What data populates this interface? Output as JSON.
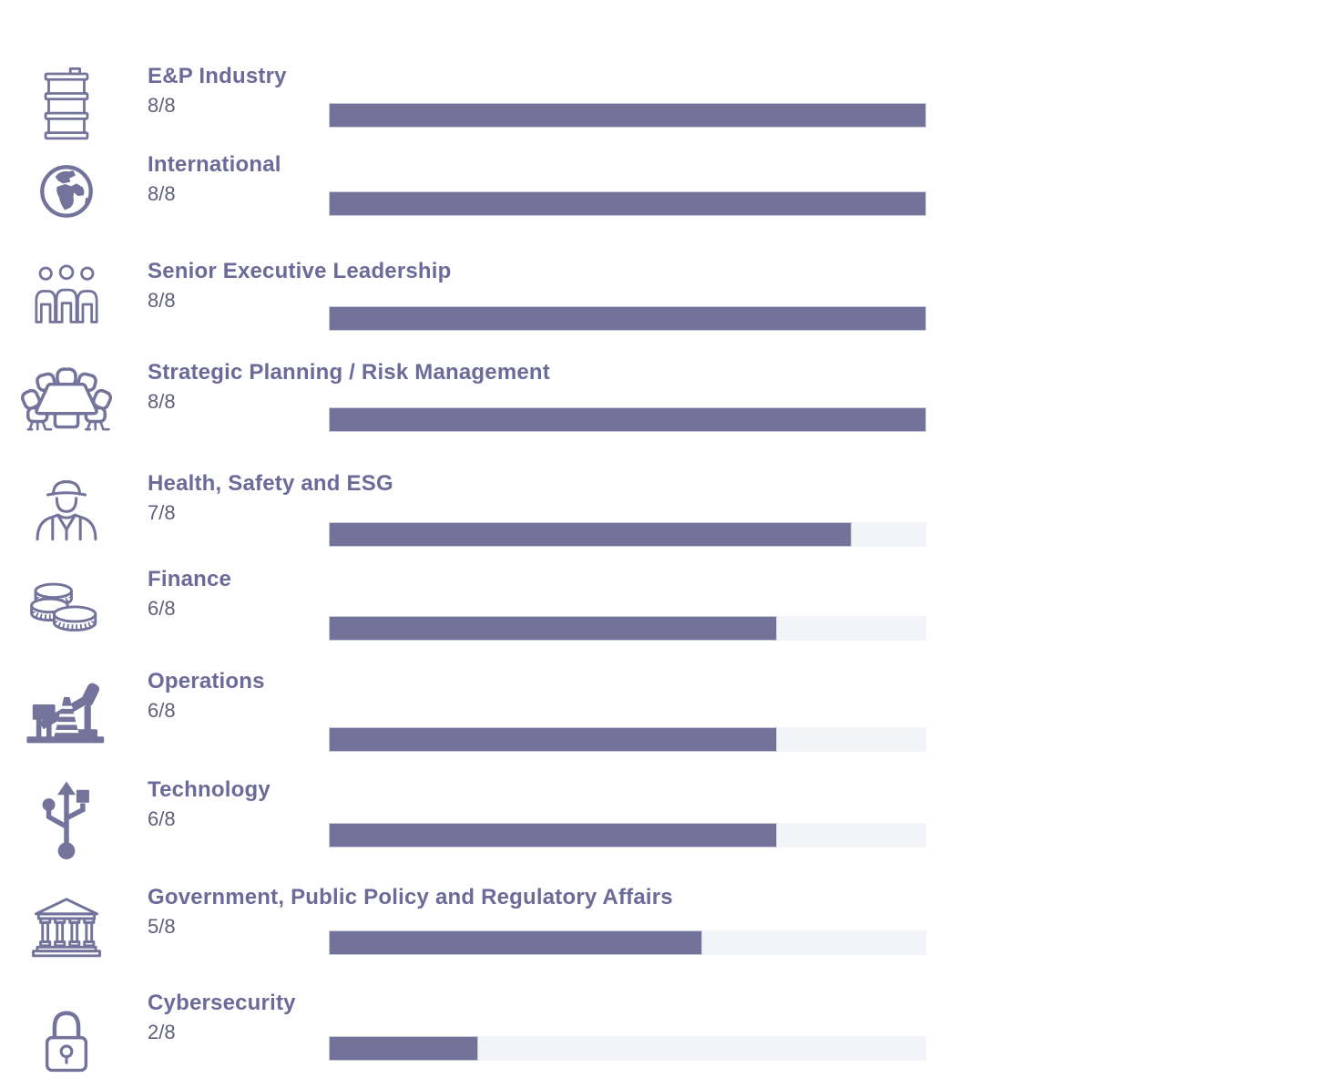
{
  "colors": {
    "bar_fill": "#737399",
    "bar_track": "#F3F4F7",
    "bar_fill_border": "#C9CADC",
    "heading_text": "#6B6A99",
    "fraction_text": "#5F5F7D",
    "icon": "#73739B"
  },
  "chart_data": {
    "type": "bar",
    "orientation": "horizontal",
    "categories": [
      "E&P Industry",
      "International",
      "Senior Executive Leadership",
      "Strategic Planning / Risk Management",
      "Health, Safety and ESG",
      "Finance",
      "Operations",
      "Technology",
      "Government, Public Policy and Regulatory Affairs",
      "Cybersecurity"
    ],
    "values": [
      8,
      8,
      8,
      8,
      7,
      6,
      6,
      6,
      5,
      2
    ],
    "max_value": 8,
    "value_labels": [
      "8/8",
      "8/8",
      "8/8",
      "8/8",
      "7/8",
      "6/8",
      "6/8",
      "6/8",
      "5/8",
      "2/8"
    ],
    "bar_color": "#737399",
    "track_color": "#F3F4F7",
    "grid": false,
    "legend": false
  },
  "rows": [
    {
      "label": "E&P Industry",
      "fraction": "8/8",
      "value": 8,
      "max": 8,
      "icon": "oil-drum-icon"
    },
    {
      "label": "International",
      "fraction": "8/8",
      "value": 8,
      "max": 8,
      "icon": "globe-icon"
    },
    {
      "label": "Senior Executive Leadership",
      "fraction": "8/8",
      "value": 8,
      "max": 8,
      "icon": "people-group-icon"
    },
    {
      "label": "Strategic Planning / Risk Management",
      "fraction": "8/8",
      "value": 8,
      "max": 8,
      "icon": "boardroom-table-icon"
    },
    {
      "label": "Health, Safety and ESG",
      "fraction": "7/8",
      "value": 7,
      "max": 8,
      "icon": "safety-worker-icon"
    },
    {
      "label": "Finance",
      "fraction": "6/8",
      "value": 6,
      "max": 8,
      "icon": "coins-icon"
    },
    {
      "label": "Operations",
      "fraction": "6/8",
      "value": 6,
      "max": 8,
      "icon": "pumpjack-icon"
    },
    {
      "label": "Technology",
      "fraction": "6/8",
      "value": 6,
      "max": 8,
      "icon": "usb-icon"
    },
    {
      "label": "Government, Public Policy and Regulatory Affairs",
      "fraction": "5/8",
      "value": 5,
      "max": 8,
      "icon": "bank-building-icon"
    },
    {
      "label": "Cybersecurity",
      "fraction": "2/8",
      "value": 2,
      "max": 8,
      "icon": "padlock-icon"
    }
  ]
}
